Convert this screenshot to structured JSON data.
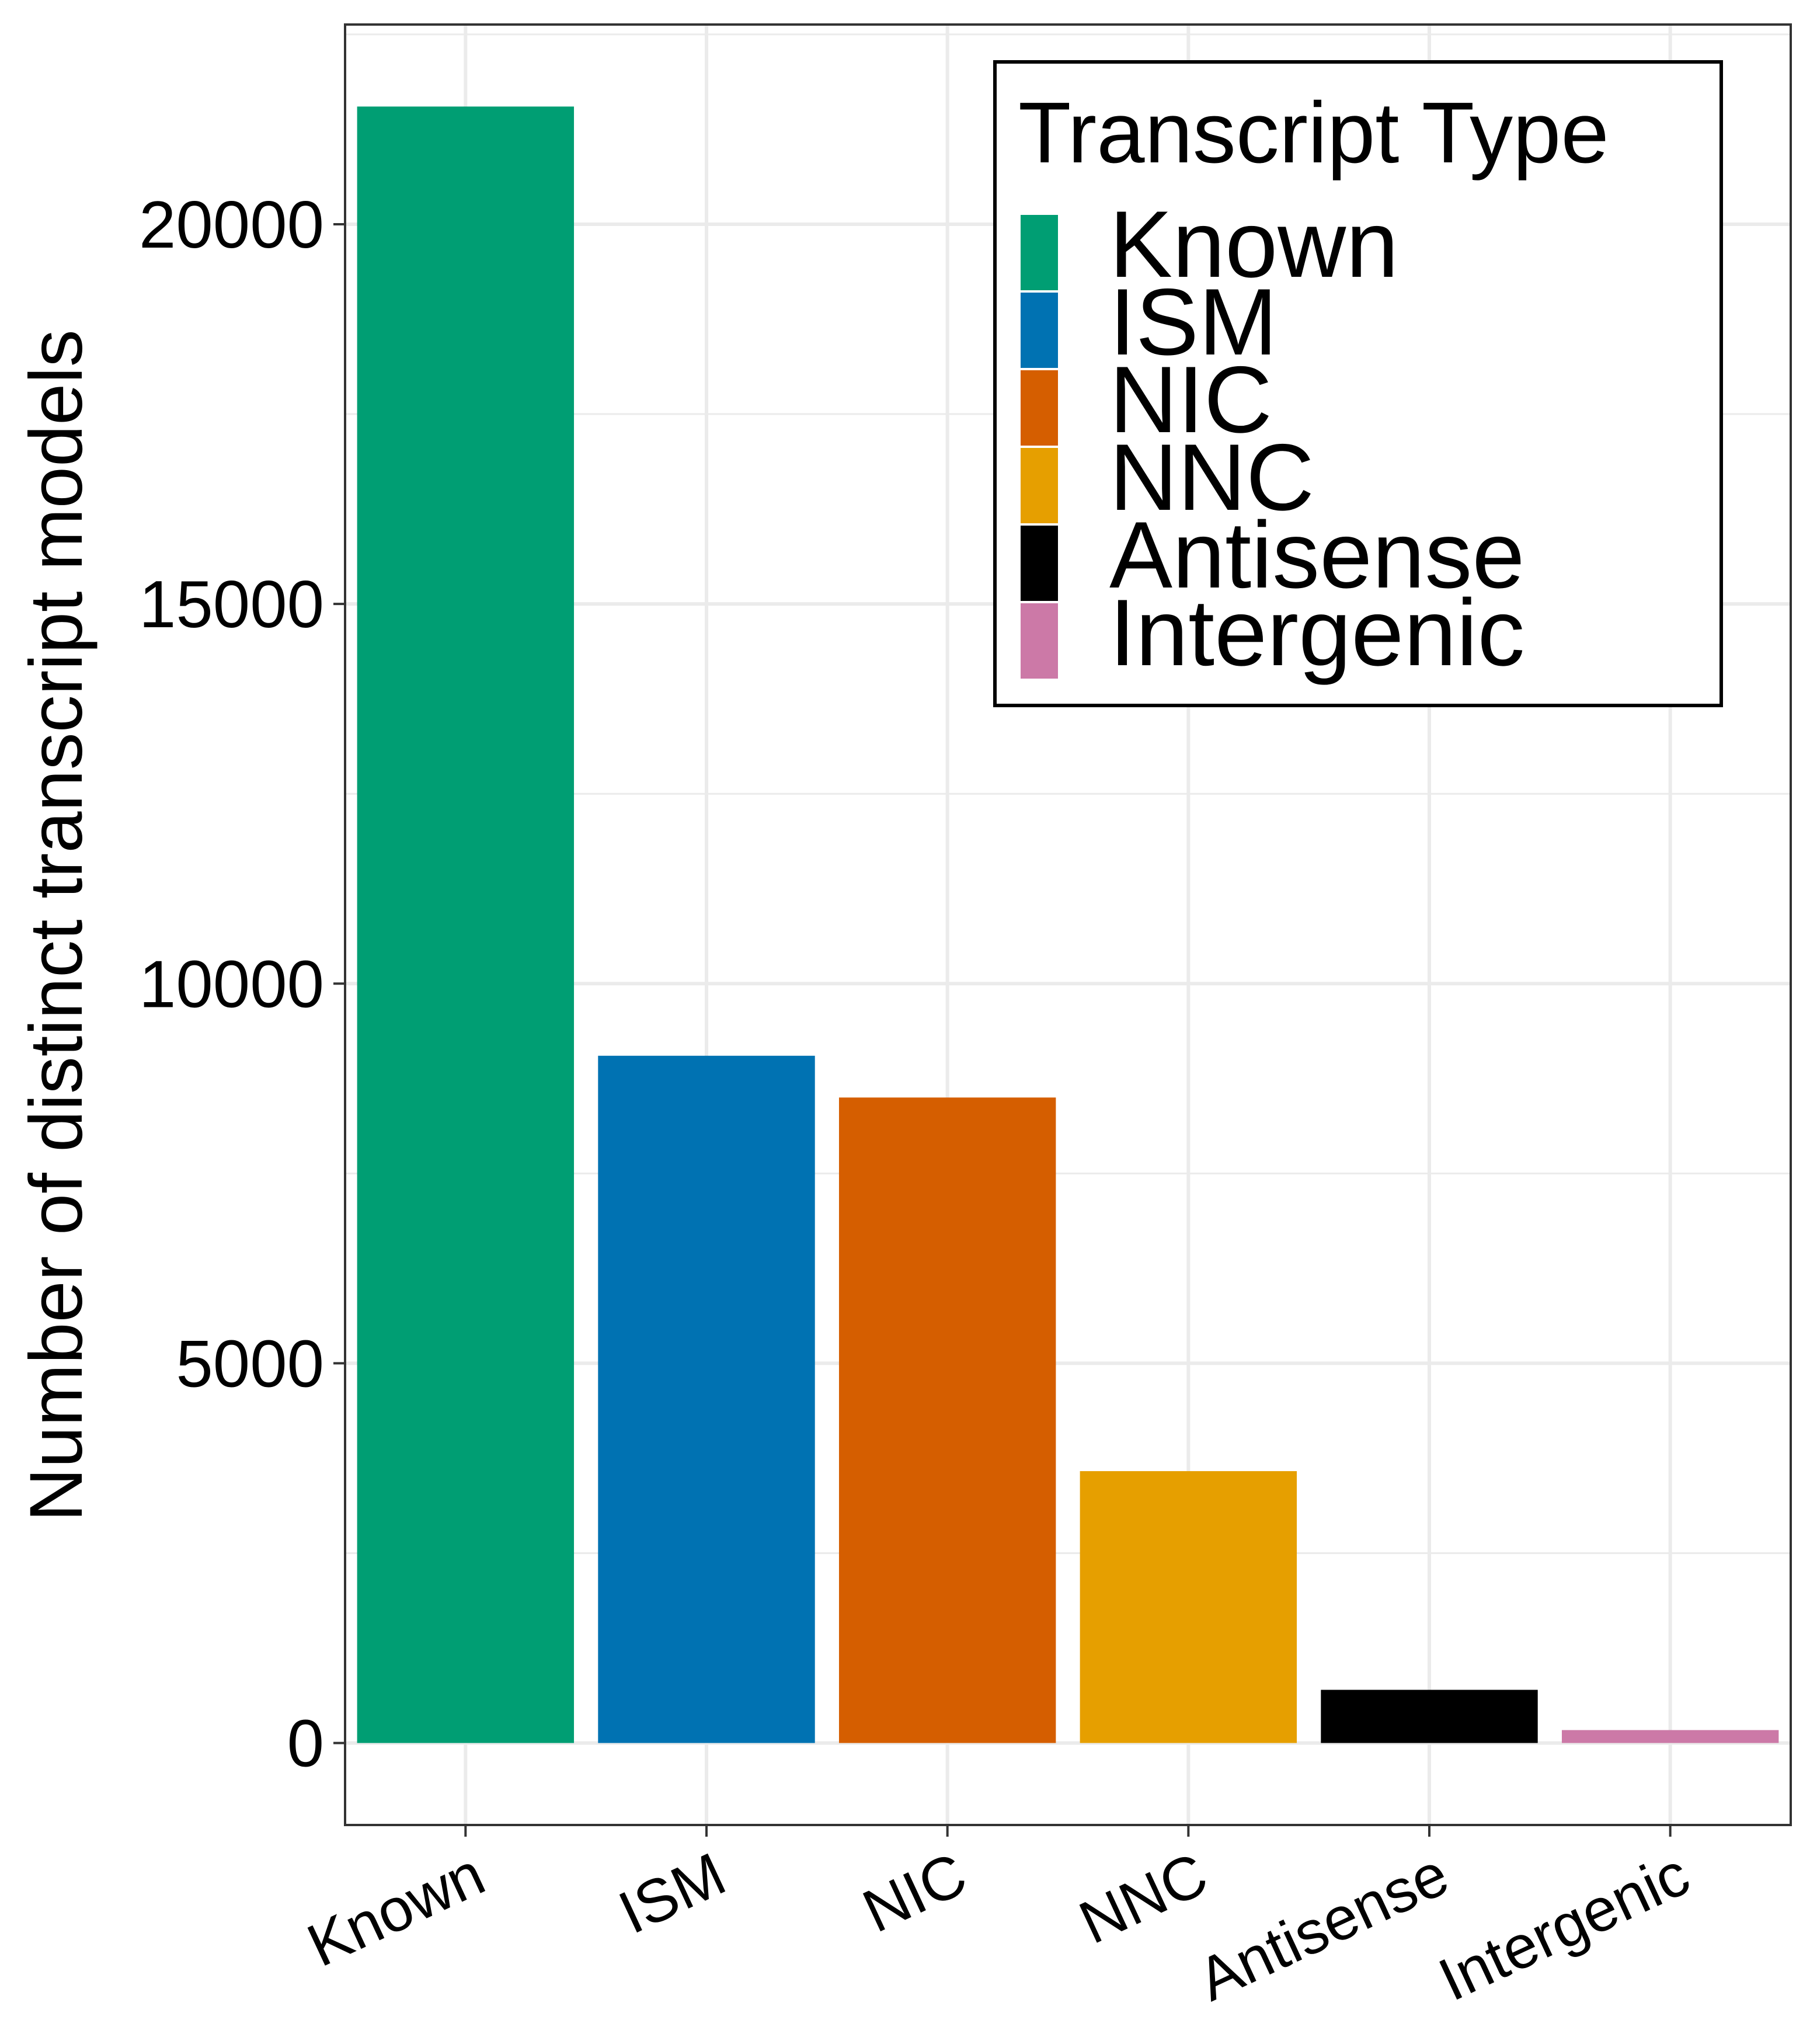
{
  "chart_data": {
    "type": "bar",
    "categories": [
      "Known",
      "ISM",
      "NIC",
      "NNC",
      "Antisense",
      "Intergenic"
    ],
    "values": [
      21550,
      9050,
      8500,
      3580,
      700,
      170
    ],
    "colors": [
      "#009E73",
      "#0072B2",
      "#D55E00",
      "#E69F00",
      "#000000",
      "#CC79A7"
    ],
    "xlabel": "",
    "ylabel": "Number of distinct transcript models",
    "ylim": [
      -1080,
      22630
    ],
    "yticks": [
      0,
      5000,
      10000,
      15000,
      20000
    ],
    "grid": true,
    "legend": {
      "title": "Transcript Type",
      "position": "top-right",
      "entries": [
        "Known",
        "ISM",
        "NIC",
        "NNC",
        "Antisense",
        "Intergenic"
      ]
    }
  }
}
